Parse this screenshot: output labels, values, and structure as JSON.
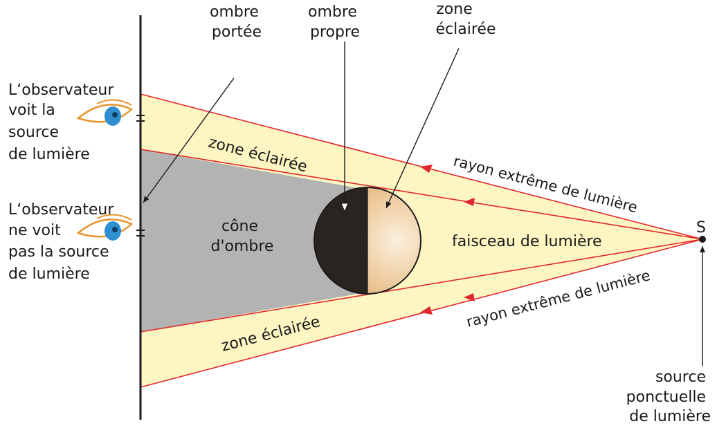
{
  "source": {
    "letter": "S",
    "caption": [
      "source",
      "ponctuelle",
      "de lumière"
    ]
  },
  "labels": {
    "ombre_portee": [
      "ombre",
      "portée"
    ],
    "ombre_propre": [
      "ombre",
      "propre"
    ],
    "zone_eclairee_top": [
      "zone",
      "éclairée"
    ],
    "zone_eclairee_upper": "zone éclairée",
    "zone_eclairee_lower": "zone éclairée",
    "cone_ombre": [
      "cône",
      "d'ombre"
    ],
    "faisceau": "faisceau de lumière",
    "rayon_top": "rayon extrême de lumière",
    "rayon_bottom": "rayon extrême de lumière"
  },
  "observers": {
    "top": [
      "L‘observateur",
      "voit la",
      "source",
      "de lumière"
    ],
    "bottom": [
      "L‘observateur",
      "ne voit",
      "pas la source",
      "de lumière"
    ]
  },
  "colors": {
    "light_zone": "#fdf6c3",
    "shadow_cone": "#b3b3b3",
    "ray": "#e3262c",
    "sphere_dark": "#2a2421",
    "sphere_lit_edge": "#d6a46e",
    "sphere_lit_center": "#fbf0dd",
    "screen": "#1a1a1a",
    "iris": "#2f8fd0",
    "lid": "#e8922a"
  }
}
